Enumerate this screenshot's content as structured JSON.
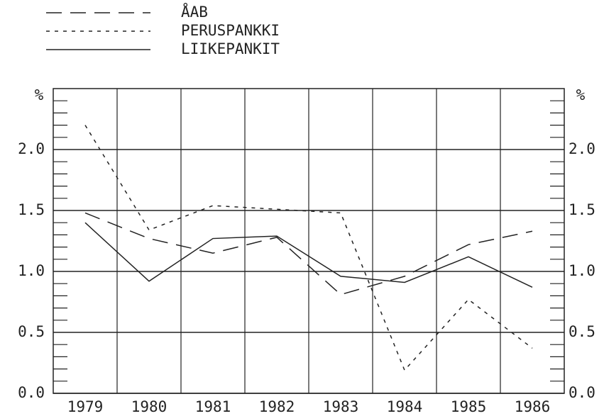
{
  "chart_data": {
    "type": "line",
    "y_label": "%",
    "categories": [
      "1979",
      "1980",
      "1981",
      "1982",
      "1983",
      "1984",
      "1985",
      "1986"
    ],
    "series": [
      {
        "name": "ÅAB",
        "color": "#222",
        "dash": "22 12",
        "values": [
          1.48,
          1.27,
          1.15,
          1.28,
          0.81,
          0.96,
          1.22,
          1.33
        ]
      },
      {
        "name": "PERUSPANKKI",
        "color": "#222",
        "dash": "5 7",
        "values": [
          2.2,
          1.34,
          1.54,
          1.51,
          1.48,
          0.19,
          0.77,
          0.37
        ]
      },
      {
        "name": "LIIKEPANKIT",
        "color": "#222",
        "dash": "none",
        "values": [
          1.4,
          0.92,
          1.27,
          1.29,
          0.96,
          0.91,
          1.12,
          0.87
        ]
      }
    ],
    "ylim": [
      0,
      2.5
    ],
    "yticks": [
      {
        "value": 0,
        "label": "0.0"
      },
      {
        "value": 0.5,
        "label": "0.5"
      },
      {
        "value": 1,
        "label": "1.0"
      },
      {
        "value": 1.5,
        "label": "1.5"
      },
      {
        "value": 2,
        "label": "2.0"
      }
    ],
    "y_minor_ticks": [
      0.1,
      0.2,
      0.3,
      0.4,
      0.6,
      0.7,
      0.8,
      0.9,
      1.1,
      1.2,
      1.3,
      1.4,
      1.6,
      1.7,
      1.8,
      1.9,
      2.1,
      2.2,
      2.3,
      2.4
    ],
    "grid": true
  }
}
